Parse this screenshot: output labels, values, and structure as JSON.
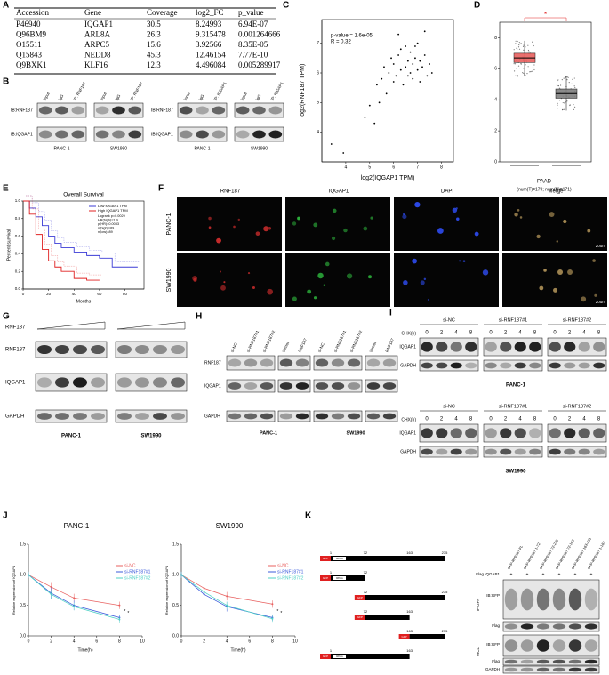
{
  "labels": [
    "A",
    "B",
    "C",
    "D",
    "E",
    "F",
    "G",
    "H",
    "I",
    "J",
    "K"
  ],
  "table": {
    "header": [
      "Accession",
      "Gene",
      "Coverage",
      "log2_FC",
      "p_value"
    ],
    "rows": [
      [
        "P46940",
        "IQGAP1",
        "30.5",
        "8.24993",
        "6.94E-07"
      ],
      [
        "Q96BM9",
        "ARL8A",
        "26.3",
        "9.315478",
        "0.001264666"
      ],
      [
        "O15511",
        "ARPC5",
        "15.6",
        "3.92566",
        "8.35E-05"
      ],
      [
        "Q15843",
        "NEDD8",
        "45.3",
        "12.46154",
        "7.77E-10"
      ],
      [
        "Q9BXK1",
        "KLF16",
        "12.3",
        "4.496084",
        "0.005289917"
      ]
    ]
  },
  "b": {
    "groups": [
      {
        "rows": [
          "IB:RNF187",
          "IB:IQGAP1"
        ],
        "lanes": [
          "Input",
          "IgG",
          "IP: RNF187"
        ],
        "cells": [
          "PANC-1",
          "SW1990"
        ]
      },
      {
        "rows": [
          "IB:RNF187",
          "IB:IQGAP1"
        ],
        "lanes": [
          "Input",
          "IgG",
          "IP: IQGAP1"
        ],
        "cells": [
          "PANC-1",
          "SW1990"
        ]
      }
    ]
  },
  "c": {
    "type": "scatter",
    "annotations": [
      "p-value = 1.6e-05",
      "R = 0.32"
    ],
    "xlabel": "log2(IQGAP1 TPM)",
    "ylabel": "log2(RNF187 TPM)",
    "xlim": [
      3,
      8.5
    ],
    "xticks": [
      4,
      5,
      6,
      7,
      8
    ],
    "ylim": [
      3,
      7.8
    ],
    "yticks": [
      4,
      5,
      6,
      7
    ],
    "color": "#000000",
    "x": [
      3.4,
      3.9,
      4.8,
      5.0,
      5.2,
      5.3,
      5.5,
      5.6,
      5.7,
      5.8,
      5.9,
      6.0,
      6.0,
      6.1,
      6.2,
      6.3,
      6.3,
      6.4,
      6.5,
      6.5,
      6.6,
      6.6,
      6.7,
      6.7,
      6.8,
      6.8,
      6.9,
      7.0,
      7.0,
      7.1,
      7.1,
      7.2,
      7.3,
      7.4,
      7.5,
      7.6,
      6.2,
      5.4,
      6.9,
      7.3
    ],
    "y": [
      3.6,
      3.3,
      4.5,
      4.9,
      4.3,
      5.6,
      5.8,
      6.2,
      5.3,
      6.0,
      6.5,
      5.7,
      6.3,
      5.9,
      6.6,
      6.1,
      6.8,
      5.6,
      6.2,
      6.9,
      5.9,
      6.4,
      6.0,
      6.7,
      6.3,
      5.8,
      6.5,
      6.1,
      7.0,
      5.7,
      6.4,
      6.2,
      6.6,
      5.9,
      6.3,
      6.0,
      7.3,
      5.0,
      6.9,
      7.4
    ]
  },
  "d": {
    "type": "box",
    "mark": "*",
    "group": "PAAD",
    "counts": "(num(T)=179; num(N)=171)",
    "ylim": [
      0,
      9
    ],
    "yticks": [
      0,
      2,
      4,
      6,
      8
    ],
    "boxes": [
      {
        "whislo": 5.5,
        "q1": 6.4,
        "med": 6.7,
        "q3": 7.0,
        "whishi": 7.8,
        "color": "#e8605f"
      },
      {
        "whislo": 3.3,
        "q1": 4.1,
        "med": 4.4,
        "q3": 4.7,
        "whishi": 5.5,
        "color": "#7f7f7f"
      }
    ]
  },
  "e": {
    "type": "line",
    "title": "Overall Survival",
    "xlabel": "Months",
    "ylabel": "Percent survival",
    "xlim": [
      0,
      95
    ],
    "xticks": [
      0,
      20,
      40,
      60,
      80
    ],
    "ylim": [
      0,
      1
    ],
    "yticks": [
      {
        "value": 0,
        "label": "0.0"
      },
      0.2,
      0.4,
      0.6,
      0.8,
      {
        "value": 1,
        "label": "1.0"
      }
    ],
    "stats": [
      "Logrank p=0.0029",
      "HR(high)=1.9",
      "p(HR)=0.0033",
      "n(high)=89",
      "n(low)=89"
    ],
    "series": [
      {
        "name": "Low IQGAP1 TPM",
        "color": "#3b3bd6",
        "x": [
          0,
          5,
          10,
          15,
          20,
          25,
          30,
          40,
          50,
          60,
          70,
          80,
          90
        ],
        "y": [
          1,
          0.92,
          0.82,
          0.72,
          0.6,
          0.52,
          0.47,
          0.42,
          0.38,
          0.35,
          0.25,
          0.25,
          0.25
        ]
      },
      {
        "name": "High IQGAP1 TPM",
        "color": "#e02020",
        "x": [
          0,
          5,
          10,
          15,
          20,
          25,
          30,
          40,
          50,
          60
        ],
        "y": [
          1,
          0.85,
          0.62,
          0.45,
          0.32,
          0.25,
          0.2,
          0.12,
          0.1,
          0.1
        ]
      }
    ]
  },
  "f": {
    "columns": [
      "RNF187",
      "IQGAP1",
      "DAPI",
      "Merge"
    ],
    "rows": [
      "PANC-1",
      "SW1990"
    ],
    "scale": "20um"
  },
  "g": {
    "wedge": "RNF187",
    "rows": [
      "RNF187",
      "IQGAP1",
      "GAPDH"
    ],
    "cells": [
      "PANC-1",
      "SW1990"
    ]
  },
  "h": {
    "lanes": [
      "si-NC",
      "si-RNF187#1",
      "si-RNF187#2",
      "Vector",
      "RNF187"
    ],
    "rows": [
      "RNF187",
      "IQGAP1",
      "GAPDH"
    ],
    "cells": [
      "PANC-1",
      "SW1990"
    ]
  },
  "i": {
    "chx": "CHX(h)",
    "groups": [
      "si-NC",
      "si-RNF187#1",
      "si-RNF187#2"
    ],
    "times": [
      0,
      2,
      4,
      8
    ],
    "rows": [
      "IQGAP1",
      "GAPDH"
    ],
    "cells": [
      "PANC-1",
      "SW1990"
    ]
  },
  "j": [
    {
      "type": "line",
      "title": "PANC-1",
      "xlabel": "Time(h)",
      "ylabel": "Relative expression of IQGAP1",
      "x": [
        0,
        2,
        4,
        8
      ],
      "xlim": [
        0,
        10
      ],
      "xticks": [
        0,
        2,
        4,
        6,
        8,
        10
      ],
      "ylim": [
        0,
        1.5
      ],
      "yticks": [
        {
          "value": 0,
          "label": "0.0"
        },
        0.5,
        {
          "value": 1,
          "label": "1.0"
        },
        1.5
      ],
      "annotations": [
        "*",
        "*"
      ],
      "series": [
        {
          "name": "si-NC",
          "color": "#e8605f",
          "values": [
            1,
            0.8,
            0.62,
            0.5
          ],
          "errors": [
            0.05,
            0.08,
            0.07,
            0.06
          ]
        },
        {
          "name": "si-RNF187#1",
          "color": "#3b5bdb",
          "values": [
            1,
            0.7,
            0.5,
            0.3
          ],
          "errors": [
            0.05,
            0.09,
            0.08,
            0.05
          ]
        },
        {
          "name": "si-RNF187#2",
          "color": "#4fd1c5",
          "values": [
            1,
            0.68,
            0.48,
            0.27
          ],
          "errors": [
            0.05,
            0.07,
            0.06,
            0.05
          ]
        }
      ]
    },
    {
      "type": "line",
      "title": "SW1990",
      "xlabel": "Time(h)",
      "ylabel": "Relative expression of IQGAP1",
      "x": [
        0,
        2,
        4,
        8
      ],
      "xlim": [
        0,
        10
      ],
      "xticks": [
        0,
        2,
        4,
        6,
        8,
        10
      ],
      "ylim": [
        0,
        1.5
      ],
      "yticks": [
        {
          "value": 0,
          "label": "0.0"
        },
        0.5,
        {
          "value": 1,
          "label": "1.0"
        },
        1.5
      ],
      "annotations": [
        "*",
        "*"
      ],
      "series": [
        {
          "name": "si-NC",
          "color": "#e8605f",
          "values": [
            1,
            0.78,
            0.65,
            0.52
          ],
          "errors": [
            0.05,
            0.08,
            0.07,
            0.06
          ]
        },
        {
          "name": "si-RNF187#1",
          "color": "#3b5bdb",
          "values": [
            1,
            0.68,
            0.48,
            0.3
          ],
          "errors": [
            0.05,
            0.09,
            0.08,
            0.05
          ]
        },
        {
          "name": "si-RNF187#2",
          "color": "#4fd1c5",
          "values": [
            1,
            0.72,
            0.5,
            0.28
          ],
          "errors": [
            0.05,
            0.07,
            0.06,
            0.05
          ]
        }
      ]
    }
  ],
  "k": {
    "gfp": "GFP",
    "ring": "RING",
    "constructs": [
      {
        "start": 1,
        "end": 235,
        "marks": [
          72,
          163
        ]
      },
      {
        "start": 1,
        "end": 72,
        "marks": []
      },
      {
        "start": 72,
        "end": 235,
        "marks": []
      },
      {
        "start": 72,
        "end": 163,
        "marks": []
      },
      {
        "start": 163,
        "end": 235,
        "marks": []
      },
      {
        "start": 1,
        "end": 163,
        "marks": []
      }
    ],
    "lanes": [
      "GFP-RNF187-FL",
      "GFP-RNF187 1-72",
      "GFP-RNF187 72-235",
      "GFP-RNF187 72-163",
      "GFP-RNF187 163-235",
      "GFP-RNF187 1-163"
    ],
    "flag_row": "Flag IQGAP1",
    "signs": [
      "+",
      "+",
      "+",
      "+",
      "+",
      "+"
    ],
    "sections": [
      "IP:GFP",
      "WCL"
    ],
    "ip_rows": [
      "IB:GFP",
      "Flag"
    ],
    "wcl_rows": [
      "IB:GFP",
      "Flag",
      "GAPDH"
    ]
  }
}
